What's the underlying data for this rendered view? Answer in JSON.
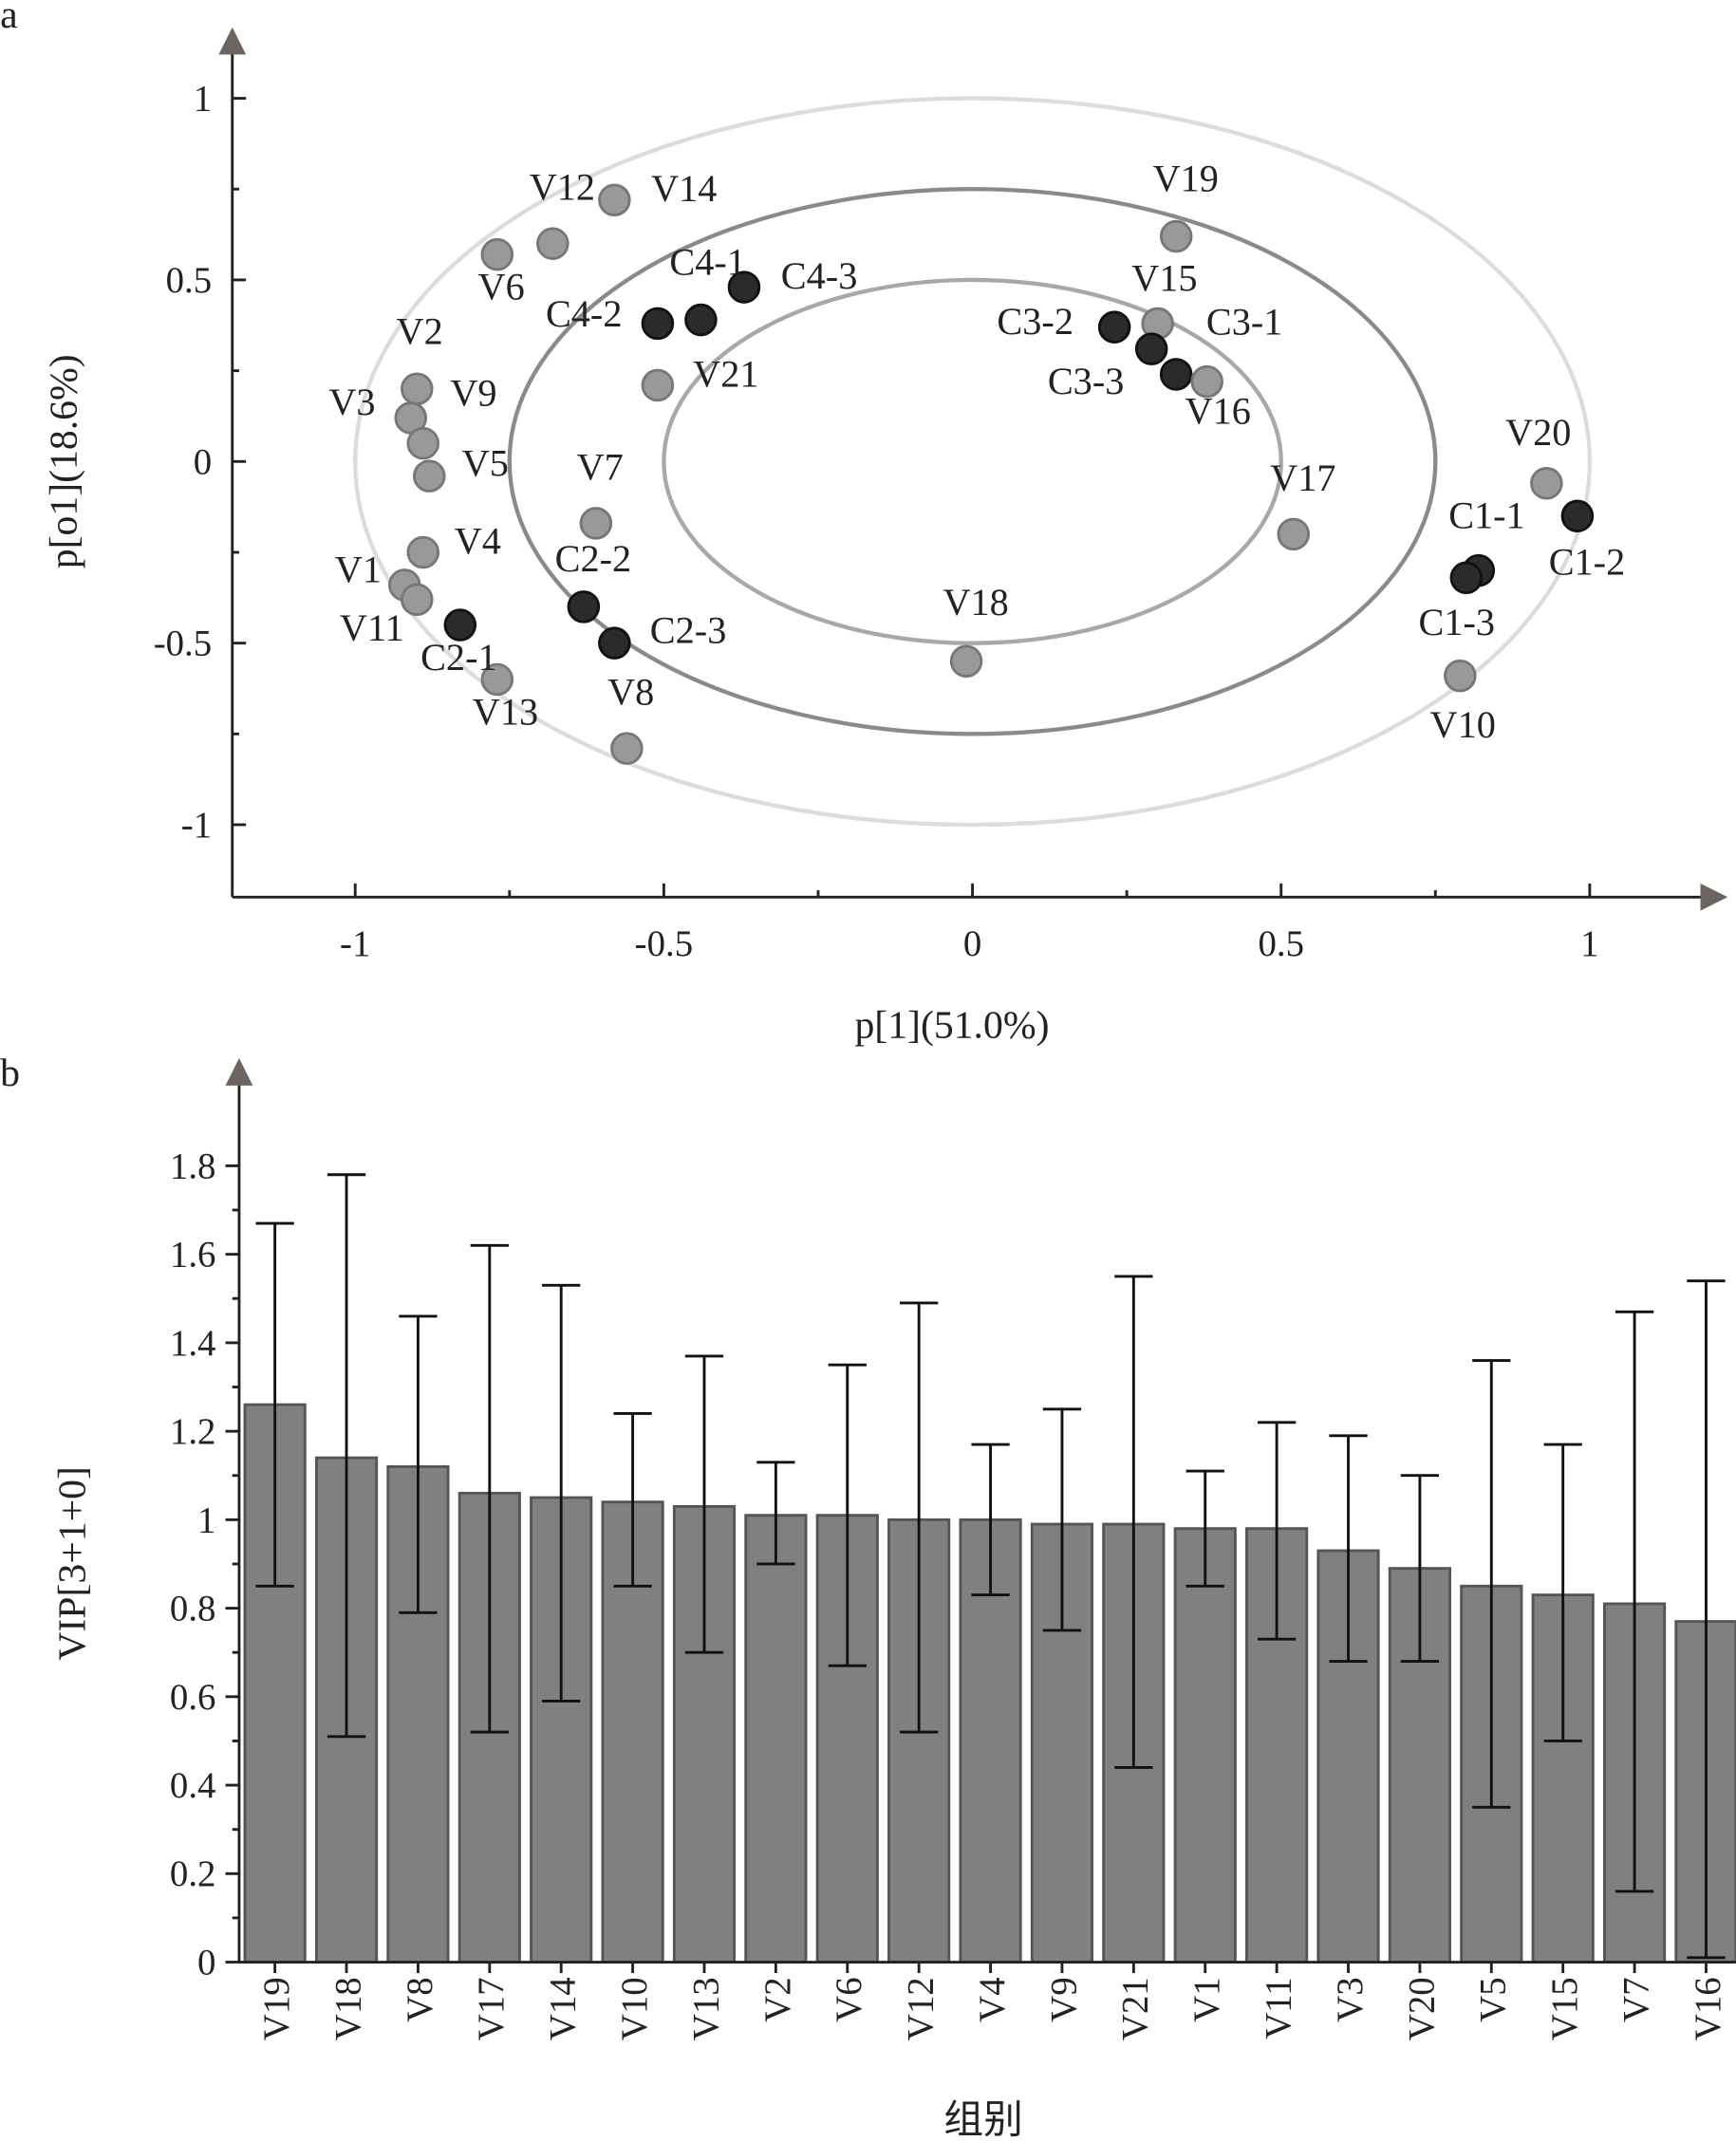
{
  "chart_data": [
    {
      "panel_label": "a",
      "type": "scatter",
      "xlabel": "p[1](51.0%)",
      "ylabel": "p[o1](18.6%)",
      "xlim": [
        -1.2,
        1.2
      ],
      "ylim": [
        -1.2,
        1.2
      ],
      "xticks": [
        "-1",
        "-0.5",
        "0",
        "0.5",
        "1"
      ],
      "xtick_values": [
        -1,
        -0.5,
        0,
        0.5,
        1
      ],
      "yticks": [
        "1",
        "0.5",
        "0",
        "-0.5",
        "-1"
      ],
      "ytick_values": [
        1,
        0.5,
        0,
        -0.5,
        -1
      ],
      "ellipse_levels": [
        0.5,
        0.75,
        1.0
      ],
      "colors": {
        "variable": "#999999",
        "sample": "#2b2b2b",
        "ellipse": "#b0b0b0"
      },
      "points": [
        {
          "label": "V12",
          "x": -0.68,
          "y": 0.6,
          "group": "variable"
        },
        {
          "label": "V14",
          "x": -0.58,
          "y": 0.72,
          "group": "variable"
        },
        {
          "label": "V6",
          "x": -0.77,
          "y": 0.57,
          "group": "variable"
        },
        {
          "label": "C4-1",
          "x": -0.44,
          "y": 0.39,
          "group": "sample"
        },
        {
          "label": "C4-3",
          "x": -0.37,
          "y": 0.48,
          "group": "sample"
        },
        {
          "label": "C4-2",
          "x": -0.51,
          "y": 0.38,
          "group": "sample"
        },
        {
          "label": "V21",
          "x": -0.51,
          "y": 0.21,
          "group": "variable"
        },
        {
          "label": "V2",
          "x": -0.9,
          "y": 0.2,
          "group": "variable"
        },
        {
          "label": "V9",
          "x": -0.91,
          "y": 0.12,
          "group": "variable"
        },
        {
          "label": "V3",
          "x": -0.89,
          "y": 0.05,
          "group": "variable"
        },
        {
          "label": "V5",
          "x": -0.88,
          "y": -0.04,
          "group": "variable"
        },
        {
          "label": "V7",
          "x": -0.61,
          "y": -0.17,
          "group": "variable"
        },
        {
          "label": "V4",
          "x": -0.89,
          "y": -0.25,
          "group": "variable"
        },
        {
          "label": "V1",
          "x": -0.92,
          "y": -0.34,
          "group": "variable"
        },
        {
          "label": "V11",
          "x": -0.9,
          "y": -0.38,
          "group": "variable"
        },
        {
          "label": "C2-1",
          "x": -0.83,
          "y": -0.45,
          "group": "sample"
        },
        {
          "label": "V13",
          "x": -0.77,
          "y": -0.6,
          "group": "variable"
        },
        {
          "label": "C2-2",
          "x": -0.63,
          "y": -0.4,
          "group": "sample"
        },
        {
          "label": "C2-3",
          "x": -0.58,
          "y": -0.5,
          "group": "sample"
        },
        {
          "label": "V8",
          "x": -0.56,
          "y": -0.79,
          "group": "variable"
        },
        {
          "label": "V18",
          "x": -0.01,
          "y": -0.55,
          "group": "variable"
        },
        {
          "label": "V19",
          "x": 0.33,
          "y": 0.62,
          "group": "variable"
        },
        {
          "label": "V15",
          "x": 0.3,
          "y": 0.38,
          "group": "variable"
        },
        {
          "label": "C3-2",
          "x": 0.23,
          "y": 0.37,
          "group": "sample"
        },
        {
          "label": "C3-3",
          "x": 0.29,
          "y": 0.31,
          "group": "sample"
        },
        {
          "label": "C3-1",
          "x": 0.33,
          "y": 0.24,
          "group": "sample"
        },
        {
          "label": "V16",
          "x": 0.38,
          "y": 0.22,
          "group": "variable"
        },
        {
          "label": "V17",
          "x": 0.52,
          "y": -0.2,
          "group": "variable"
        },
        {
          "label": "V20",
          "x": 0.93,
          "y": -0.06,
          "group": "variable"
        },
        {
          "label": "C1-2",
          "x": 0.98,
          "y": -0.15,
          "group": "sample"
        },
        {
          "label": "C1-1",
          "x": 0.82,
          "y": -0.3,
          "group": "sample"
        },
        {
          "label": "C1-3",
          "x": 0.8,
          "y": -0.32,
          "group": "sample"
        },
        {
          "label": "V10",
          "x": 0.79,
          "y": -0.59,
          "group": "variable"
        }
      ]
    },
    {
      "panel_label": "b",
      "type": "bar",
      "xlabel": "组别",
      "ylabel": "VIP[3+1+0]",
      "ylim": [
        0,
        1.9
      ],
      "yticks": [
        "0",
        "0.2",
        "0.4",
        "0.6",
        "0.8",
        "1",
        "1.2",
        "1.4",
        "1.6",
        "1.8"
      ],
      "ytick_values": [
        0,
        0.2,
        0.4,
        0.6,
        0.8,
        1,
        1.2,
        1.4,
        1.6,
        1.8
      ],
      "colors": {
        "bar": "#808080",
        "bar_edge": "#555555",
        "error": "#111111"
      },
      "categories": [
        "V19",
        "V18",
        "V8",
        "V17",
        "V14",
        "V10",
        "V13",
        "V2",
        "V6",
        "V12",
        "V4",
        "V9",
        "V21",
        "V1",
        "V11",
        "V3",
        "V20",
        "V5",
        "V15",
        "V7",
        "V16"
      ],
      "values": [
        1.26,
        1.14,
        1.12,
        1.06,
        1.05,
        1.04,
        1.03,
        1.01,
        1.01,
        1.0,
        1.0,
        0.99,
        0.99,
        0.98,
        0.98,
        0.93,
        0.89,
        0.85,
        0.83,
        0.81,
        0.77
      ],
      "error_upper": [
        1.67,
        1.78,
        1.46,
        1.62,
        1.53,
        1.24,
        1.37,
        1.13,
        1.35,
        1.49,
        1.17,
        1.25,
        1.55,
        1.11,
        1.22,
        1.19,
        1.1,
        1.36,
        1.17,
        1.47,
        1.54
      ],
      "error_lower": [
        0.85,
        0.51,
        0.79,
        0.52,
        0.59,
        0.85,
        0.7,
        0.9,
        0.67,
        0.52,
        0.83,
        0.75,
        0.44,
        0.85,
        0.73,
        0.68,
        0.68,
        0.35,
        0.5,
        0.16,
        0.01
      ]
    }
  ]
}
